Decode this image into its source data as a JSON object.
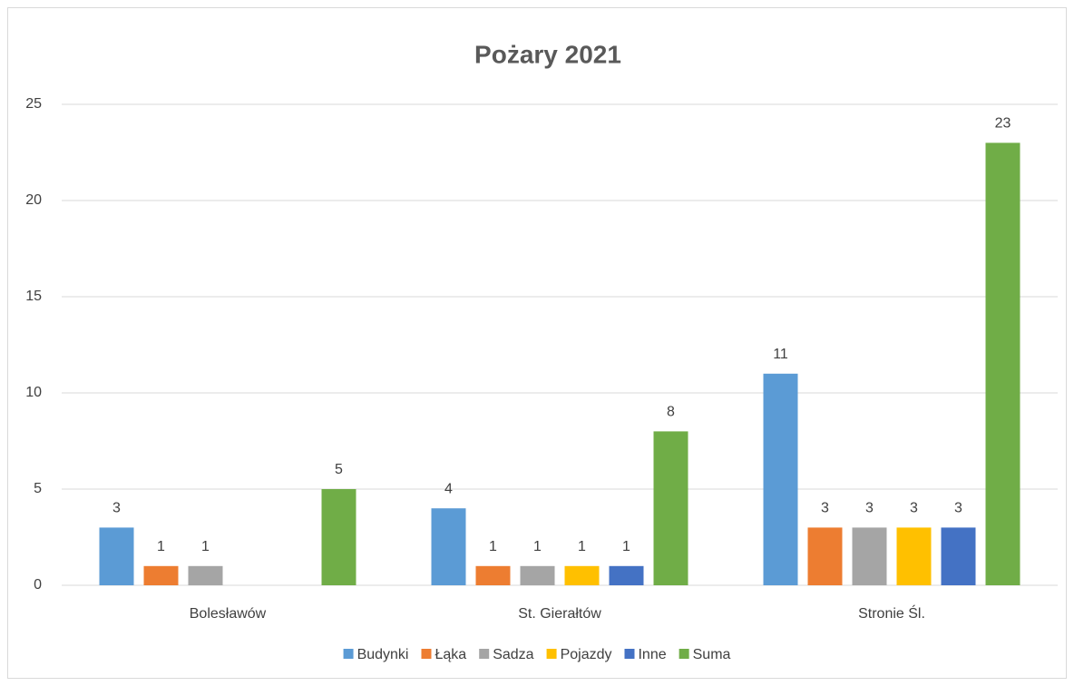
{
  "chart_data": {
    "type": "bar",
    "title": "Pożary 2021",
    "categories": [
      "Bolesławów",
      "St. Gierałtów",
      "Stronie Śl."
    ],
    "series": [
      {
        "name": "Budynki",
        "color": "#5b9bd5",
        "values": [
          3,
          4,
          11
        ]
      },
      {
        "name": "Łąka",
        "color": "#ed7d31",
        "values": [
          1,
          1,
          3
        ]
      },
      {
        "name": "Sadza",
        "color": "#a5a5a5",
        "values": [
          1,
          1,
          3
        ]
      },
      {
        "name": "Pojazdy",
        "color": "#ffc000",
        "values": [
          null,
          1,
          3
        ]
      },
      {
        "name": "Inne",
        "color": "#4472c4",
        "values": [
          null,
          1,
          3
        ]
      },
      {
        "name": "Suma",
        "color": "#70ad47",
        "values": [
          5,
          8,
          23
        ]
      }
    ],
    "ylim": [
      0,
      25
    ],
    "yticks": [
      0,
      5,
      10,
      15,
      20,
      25
    ],
    "grid": true,
    "legend": "bottom"
  }
}
